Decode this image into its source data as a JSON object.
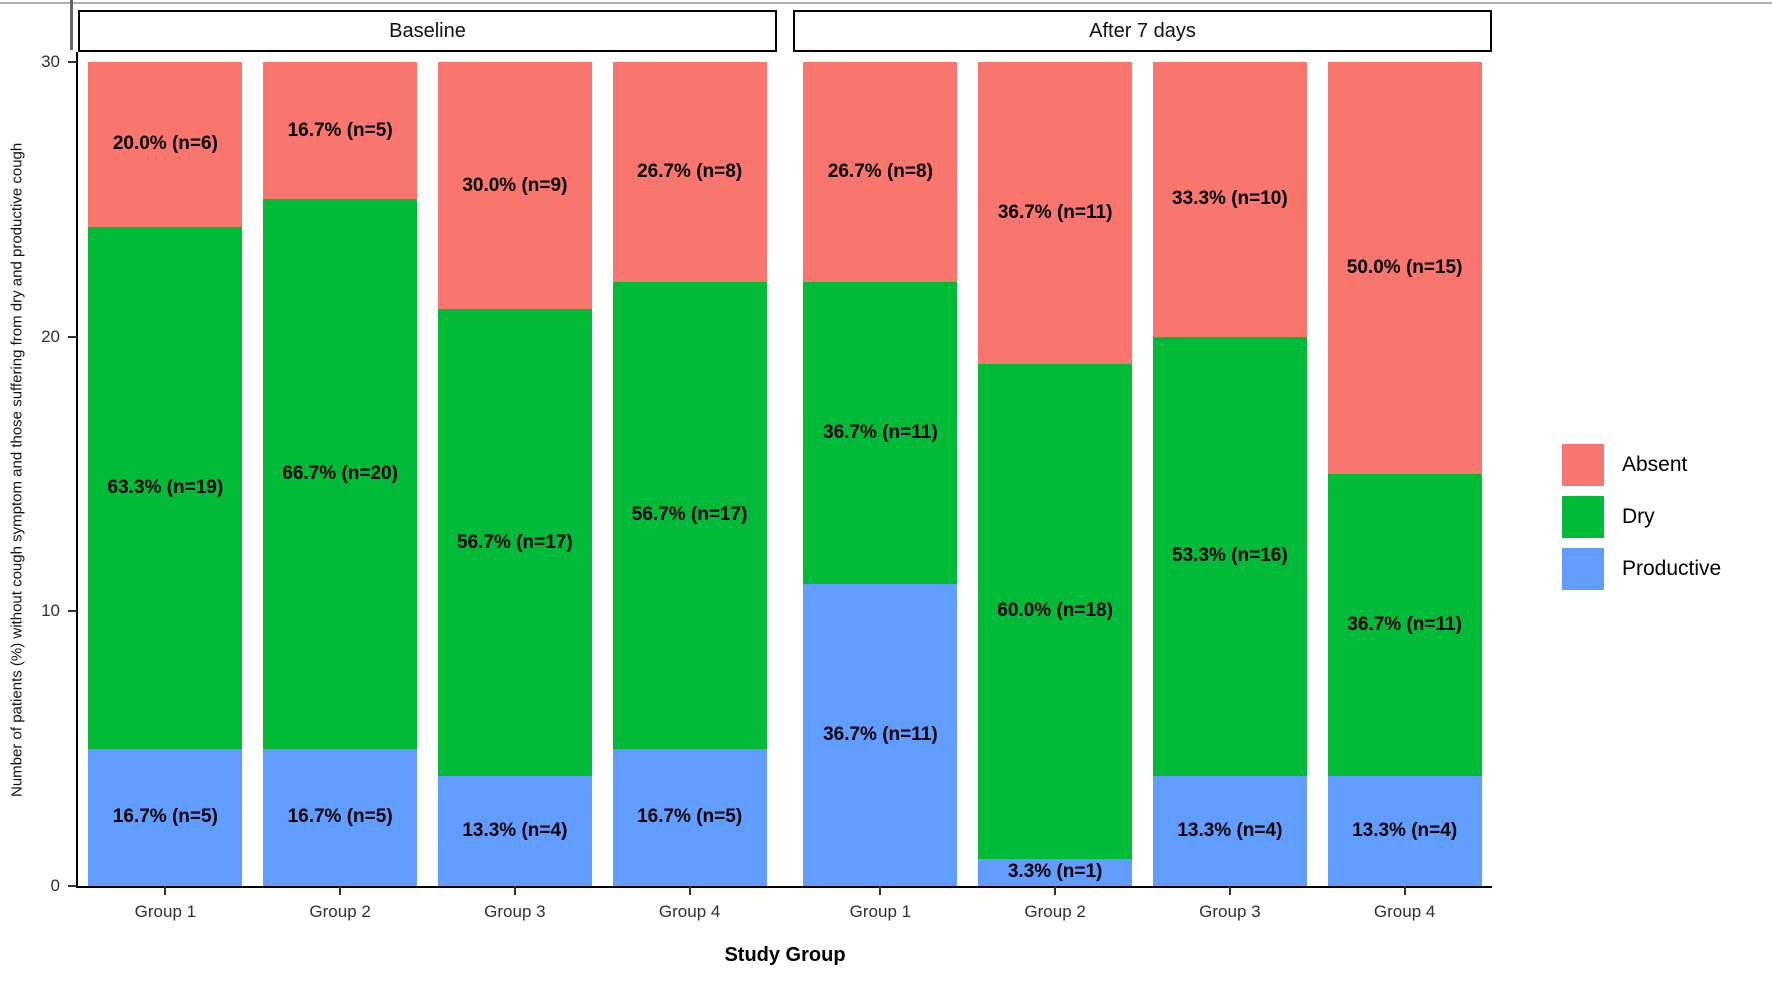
{
  "chart_data": {
    "type": "bar",
    "stacked": true,
    "title": "",
    "xlabel": "Study Group",
    "ylabel": "Number of patients (%) without cough symptom and those suffering from dry and productive cough",
    "ylim": [
      0,
      30
    ],
    "yticks": [
      0,
      10,
      20,
      30
    ],
    "grid": false,
    "legend_position": "right",
    "categories": [
      "Group 1",
      "Group 2",
      "Group 3",
      "Group 4"
    ],
    "legend": [
      {
        "name": "Absent",
        "color": "#F8766D"
      },
      {
        "name": "Dry",
        "color": "#00BA38"
      },
      {
        "name": "Productive",
        "color": "#619CFF"
      }
    ],
    "facets": [
      {
        "label": "Baseline",
        "bars": [
          {
            "category": "Group 1",
            "segments": [
              {
                "series": "Productive",
                "count": 5,
                "label": "16.7% (n=5)"
              },
              {
                "series": "Dry",
                "count": 19,
                "label": "63.3% (n=19)"
              },
              {
                "series": "Absent",
                "count": 6,
                "label": "20.0% (n=6)"
              }
            ]
          },
          {
            "category": "Group 2",
            "segments": [
              {
                "series": "Productive",
                "count": 5,
                "label": "16.7% (n=5)"
              },
              {
                "series": "Dry",
                "count": 20,
                "label": "66.7% (n=20)"
              },
              {
                "series": "Absent",
                "count": 5,
                "label": "16.7% (n=5)"
              }
            ]
          },
          {
            "category": "Group 3",
            "segments": [
              {
                "series": "Productive",
                "count": 4,
                "label": "13.3% (n=4)"
              },
              {
                "series": "Dry",
                "count": 17,
                "label": "56.7% (n=17)"
              },
              {
                "series": "Absent",
                "count": 9,
                "label": "30.0% (n=9)"
              }
            ]
          },
          {
            "category": "Group 4",
            "segments": [
              {
                "series": "Productive",
                "count": 5,
                "label": "16.7% (n=5)"
              },
              {
                "series": "Dry",
                "count": 17,
                "label": "56.7% (n=17)"
              },
              {
                "series": "Absent",
                "count": 8,
                "label": "26.7% (n=8)"
              }
            ]
          }
        ]
      },
      {
        "label": "After 7 days",
        "bars": [
          {
            "category": "Group 1",
            "segments": [
              {
                "series": "Productive",
                "count": 11,
                "label": "36.7% (n=11)"
              },
              {
                "series": "Dry",
                "count": 11,
                "label": "36.7% (n=11)"
              },
              {
                "series": "Absent",
                "count": 8,
                "label": "26.7% (n=8)"
              }
            ]
          },
          {
            "category": "Group 2",
            "segments": [
              {
                "series": "Productive",
                "count": 1,
                "label": "3.3% (n=1)"
              },
              {
                "series": "Dry",
                "count": 18,
                "label": "60.0% (n=18)"
              },
              {
                "series": "Absent",
                "count": 11,
                "label": "36.7% (n=11)"
              }
            ]
          },
          {
            "category": "Group 3",
            "segments": [
              {
                "series": "Productive",
                "count": 4,
                "label": "13.3% (n=4)"
              },
              {
                "series": "Dry",
                "count": 16,
                "label": "53.3% (n=16)"
              },
              {
                "series": "Absent",
                "count": 10,
                "label": "33.3% (n=10)"
              }
            ]
          },
          {
            "category": "Group 4",
            "segments": [
              {
                "series": "Productive",
                "count": 4,
                "label": "13.3% (n=4)"
              },
              {
                "series": "Dry",
                "count": 11,
                "label": "36.7% (n=11)"
              },
              {
                "series": "Absent",
                "count": 15,
                "label": "50.0% (n=15)"
              }
            ]
          }
        ]
      }
    ]
  }
}
